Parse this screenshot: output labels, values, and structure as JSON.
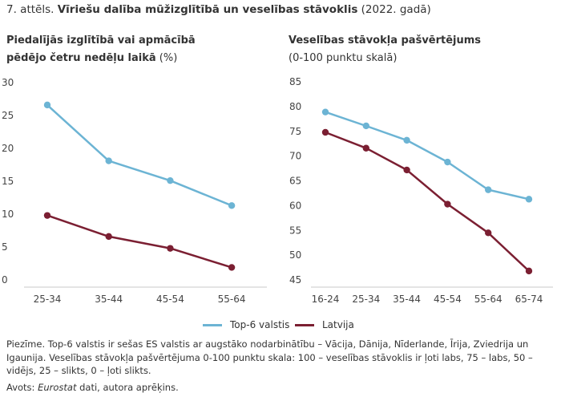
{
  "figure": {
    "title_prefix": "7. attēls.",
    "title_bold": "Vīriešu dalība mūžizglītībā un veselības stāvoklis",
    "title_suffix": "(2022. gadā)"
  },
  "legend": {
    "items": [
      {
        "label": "Top-6 valstis",
        "color": "#6cb4d4"
      },
      {
        "label": "Latvija",
        "color": "#7b1f32"
      }
    ]
  },
  "chart_data": [
    {
      "type": "line",
      "title_bold_line1": "Piedalījās izglītībā vai apmācībā",
      "title_bold_line2": "pēdējo četru nedēļu laikā",
      "title_unit": "(%)",
      "categories": [
        "25-34",
        "35-44",
        "45-54",
        "55-64"
      ],
      "yticks": [
        "0",
        "5",
        "10",
        "15",
        "20",
        "25",
        "30"
      ],
      "ylim": [
        0,
        30
      ],
      "series": [
        {
          "name": "Top-6 valstis",
          "color": "#6cb4d4",
          "values": [
            26.6,
            18.1,
            15.1,
            11.3
          ]
        },
        {
          "name": "Latvija",
          "color": "#7b1f32",
          "values": [
            9.8,
            6.6,
            4.8,
            1.9
          ]
        }
      ]
    },
    {
      "type": "line",
      "title_bold_line1": "Veselības stāvokļa pašvērtējums",
      "title_line2": "(0-100 punktu skalā)",
      "categories": [
        "16-24",
        "25-34",
        "35-44",
        "45-54",
        "55-64",
        "65-74"
      ],
      "yticks": [
        "45",
        "50",
        "55",
        "60",
        "65",
        "70",
        "75",
        "80",
        "85"
      ],
      "ylim": [
        45,
        85
      ],
      "series": [
        {
          "name": "Top-6 valstis",
          "color": "#6cb4d4",
          "values": [
            78.9,
            76.1,
            73.2,
            68.8,
            63.2,
            61.3
          ]
        },
        {
          "name": "Latvija",
          "color": "#7b1f32",
          "values": [
            74.8,
            71.6,
            67.2,
            60.3,
            54.5,
            46.8
          ]
        }
      ]
    }
  ],
  "note": "Piezīme. Top-6 valstis ir sešas ES valstis ar augstāko nodarbinātību – Vācija, Dānija, Nīderlande, Īrija, Zviedrija un Igaunija. Veselības stāvokļa pašvērtējuma 0-100 punktu skala: 100 – veselības stāvoklis ir ļoti labs, 75 – labs, 50 – vidējs, 25 – slikts, 0 – ļoti slikts.",
  "source": {
    "prefix": "Avots:",
    "italic": "Eurostat",
    "suffix": "dati, autora aprēķins."
  }
}
